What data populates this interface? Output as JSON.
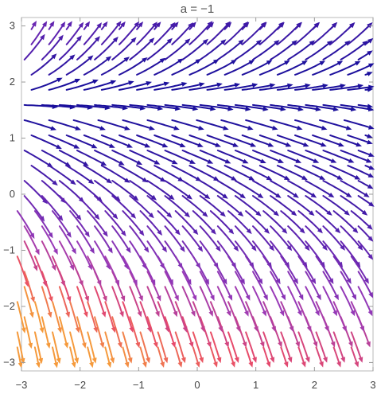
{
  "chart_data": {
    "type": "streamplot",
    "title": "a = −1",
    "parameter": {
      "name": "a",
      "value": -1
    },
    "xlim": [
      -3,
      3
    ],
    "ylim": [
      -3.15,
      3.15
    ],
    "x_ticks": [
      -3,
      -2,
      -1,
      0,
      1,
      2,
      3
    ],
    "x_tick_labels": [
      "−3",
      "−2",
      "−1",
      "0",
      "1",
      "2",
      "3"
    ],
    "y_ticks": [
      -3,
      -2,
      -1,
      0,
      1,
      2,
      3
    ],
    "y_tick_labels": [
      "−3",
      "−2",
      "−1",
      "0",
      "1",
      "2",
      "3"
    ],
    "xlabel": "",
    "ylabel": "",
    "grid": false,
    "color_scale": [
      "#1a0f9c",
      "#5c22b0",
      "#9b3bb8",
      "#e84a6a",
      "#f59a3c"
    ],
    "color_scale_meaning": "speed (dark blue = slow, orange = fast)",
    "separatrix_y": 1.32
  }
}
